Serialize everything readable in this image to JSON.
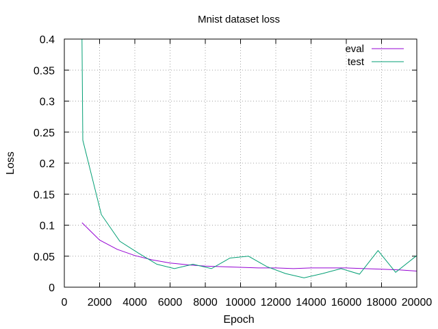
{
  "chart_data": {
    "type": "line",
    "title": "Mnist dataset loss",
    "xlabel": "Epoch",
    "ylabel": "Loss",
    "xlim": [
      0,
      20000
    ],
    "ylim": [
      0,
      0.4
    ],
    "xticks": [
      0,
      2000,
      4000,
      6000,
      8000,
      10000,
      12000,
      14000,
      16000,
      18000,
      20000
    ],
    "yticks": [
      0,
      0.05,
      0.1,
      0.15,
      0.2,
      0.25,
      0.3,
      0.35,
      0.4
    ],
    "grid": true,
    "legend_position": "top-right",
    "series": [
      {
        "name": "eval",
        "color": "#9400d3",
        "x": [
          1000,
          2000,
          3000,
          4000,
          5000,
          6000,
          7000,
          8000,
          9000,
          10000,
          11000,
          12000,
          13000,
          14000,
          15000,
          16000,
          17000,
          18000,
          19000,
          20000
        ],
        "y": [
          0.104,
          0.076,
          0.061,
          0.051,
          0.044,
          0.039,
          0.036,
          0.034,
          0.033,
          0.032,
          0.031,
          0.031,
          0.03,
          0.031,
          0.031,
          0.031,
          0.03,
          0.029,
          0.028,
          0.026
        ]
      },
      {
        "name": "test",
        "color": "#009e73",
        "x": [
          1000,
          1050,
          2100,
          3150,
          4200,
          5250,
          6250,
          7300,
          8350,
          9400,
          10450,
          11500,
          12550,
          13600,
          14650,
          15700,
          16750,
          17800,
          18800,
          20000
        ],
        "y": [
          0.4,
          0.237,
          0.117,
          0.074,
          0.055,
          0.037,
          0.03,
          0.037,
          0.03,
          0.047,
          0.05,
          0.033,
          0.022,
          0.015,
          0.022,
          0.03,
          0.021,
          0.059,
          0.024,
          0.051
        ]
      }
    ]
  }
}
